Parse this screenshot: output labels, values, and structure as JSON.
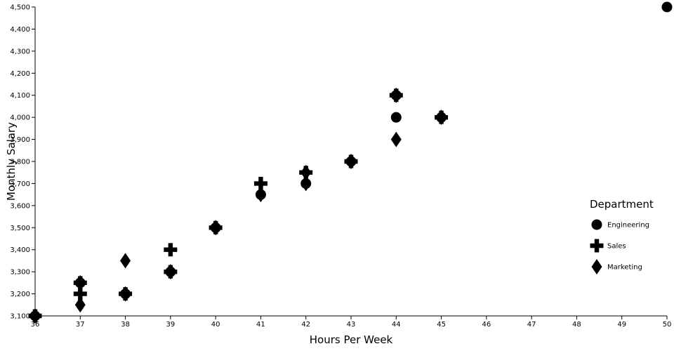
{
  "chart_data": {
    "type": "scatter",
    "xlabel": "Hours Per Week",
    "ylabel": "Monthly Salary",
    "xlim": [
      36,
      50
    ],
    "ylim": [
      3100,
      4500
    ],
    "x_ticks": [
      36,
      37,
      38,
      39,
      40,
      41,
      42,
      43,
      44,
      45,
      46,
      47,
      48,
      49,
      50
    ],
    "y_ticks": [
      3100,
      3200,
      3300,
      3400,
      3500,
      3600,
      3700,
      3800,
      3900,
      4000,
      4100,
      4200,
      4300,
      4400,
      4500
    ],
    "grid": false,
    "legend": {
      "title": "Department",
      "position": "right"
    },
    "series": [
      {
        "name": "Engineering",
        "shape": "circle",
        "color": "#000000",
        "points": [
          {
            "x": 36,
            "y": 3100
          },
          {
            "x": 37,
            "y": 3250
          },
          {
            "x": 38,
            "y": 3200
          },
          {
            "x": 39,
            "y": 3300
          },
          {
            "x": 40,
            "y": 3500
          },
          {
            "x": 41,
            "y": 3650
          },
          {
            "x": 42,
            "y": 3700
          },
          {
            "x": 43,
            "y": 3800
          },
          {
            "x": 44,
            "y": 4000
          },
          {
            "x": 44,
            "y": 4100
          },
          {
            "x": 45,
            "y": 4000
          },
          {
            "x": 50,
            "y": 4500
          }
        ]
      },
      {
        "name": "Sales",
        "shape": "cross",
        "color": "#000000",
        "points": [
          {
            "x": 36,
            "y": 3100
          },
          {
            "x": 37,
            "y": 3200
          },
          {
            "x": 37,
            "y": 3250
          },
          {
            "x": 38,
            "y": 3200
          },
          {
            "x": 39,
            "y": 3300
          },
          {
            "x": 39,
            "y": 3400
          },
          {
            "x": 40,
            "y": 3500
          },
          {
            "x": 41,
            "y": 3700
          },
          {
            "x": 42,
            "y": 3750
          },
          {
            "x": 43,
            "y": 3800
          },
          {
            "x": 44,
            "y": 4100
          },
          {
            "x": 45,
            "y": 4000
          }
        ]
      },
      {
        "name": "Marketing",
        "shape": "diamond",
        "color": "#000000",
        "points": [
          {
            "x": 36,
            "y": 3100
          },
          {
            "x": 37,
            "y": 3150
          },
          {
            "x": 37,
            "y": 3250
          },
          {
            "x": 38,
            "y": 3200
          },
          {
            "x": 38,
            "y": 3350
          },
          {
            "x": 39,
            "y": 3300
          },
          {
            "x": 40,
            "y": 3500
          },
          {
            "x": 41,
            "y": 3650
          },
          {
            "x": 42,
            "y": 3700
          },
          {
            "x": 42,
            "y": 3750
          },
          {
            "x": 43,
            "y": 3800
          },
          {
            "x": 44,
            "y": 3900
          },
          {
            "x": 44,
            "y": 4100
          },
          {
            "x": 45,
            "y": 4000
          }
        ]
      }
    ]
  }
}
